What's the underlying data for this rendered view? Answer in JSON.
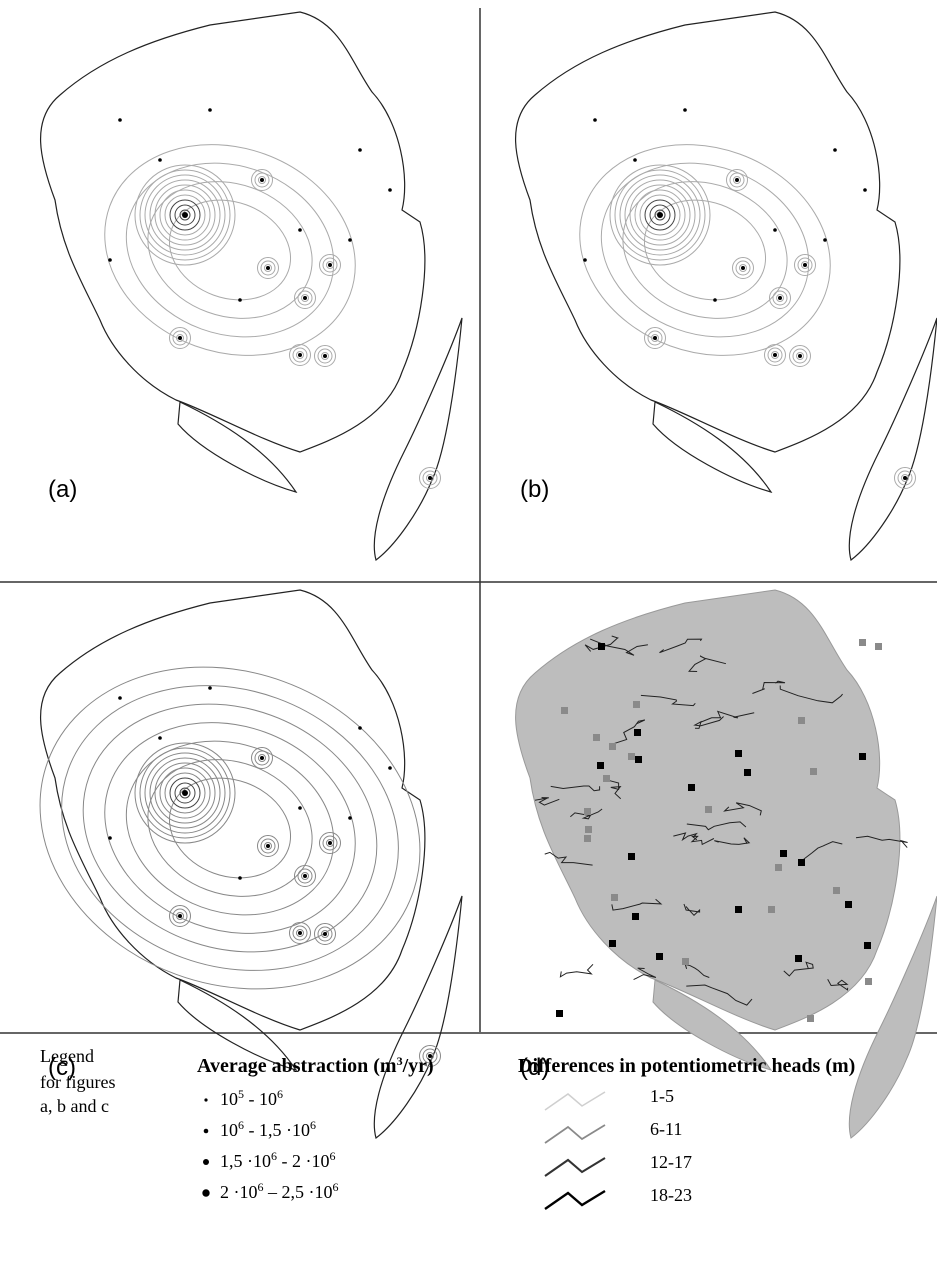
{
  "panels": [
    {
      "label": "(a)"
    },
    {
      "label": "(b)"
    },
    {
      "label": "(c)"
    },
    {
      "label": "(d)"
    }
  ],
  "legend": {
    "note": [
      "Legend",
      "for figures",
      "a, b and c"
    ],
    "abstraction": {
      "title": [
        {
          "text": "Average abstraction (m"
        },
        {
          "sup": "3"
        },
        {
          "text": "/yr)"
        }
      ],
      "items": [
        [
          {
            "text": "10"
          },
          {
            "sup": "5"
          },
          {
            "text": " - 10"
          },
          {
            "sup": "6"
          }
        ],
        [
          {
            "text": "10"
          },
          {
            "sup": "6"
          },
          {
            "text": " - 1,5 ·10"
          },
          {
            "sup": "6"
          }
        ],
        [
          {
            "text": "1,5 ·10"
          },
          {
            "sup": "6"
          },
          {
            "text": " - 2 ·10"
          },
          {
            "sup": "6"
          }
        ],
        [
          {
            "text": "2 ·10"
          },
          {
            "sup": "6"
          },
          {
            "text": " – 2,5 ·10"
          },
          {
            "sup": "6"
          }
        ]
      ]
    },
    "differences": {
      "title": "Differences in potentiometric heads (m)",
      "items": [
        "1-5",
        "6-11",
        "12-17",
        "18-23"
      ]
    }
  }
}
